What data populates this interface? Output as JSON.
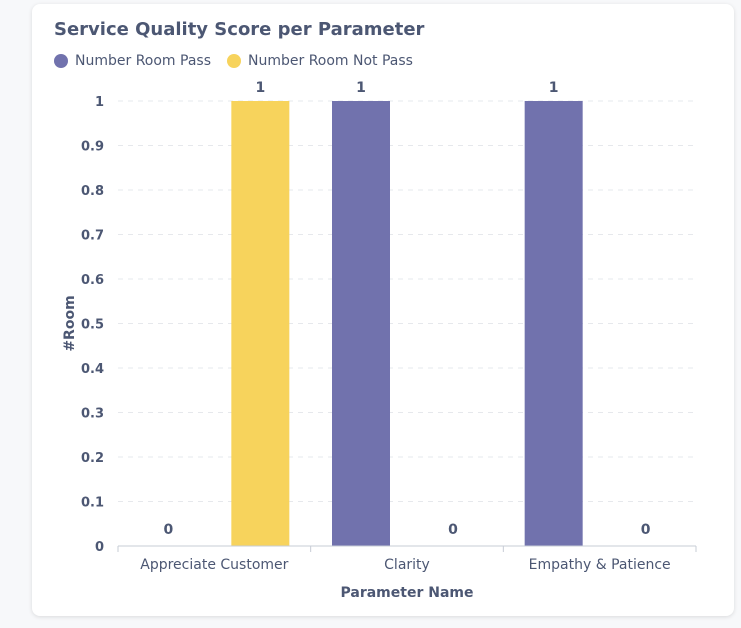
{
  "card": {
    "title": "Service Quality Score per Parameter"
  },
  "legend": [
    {
      "label": "Number Room Pass",
      "color": "#7172ad"
    },
    {
      "label": "Number Room Not Pass",
      "color": "#f7d35c"
    }
  ],
  "chart_data": {
    "type": "bar",
    "title": "Service Quality Score per Parameter",
    "xlabel": "Parameter Name",
    "ylabel": "#Room",
    "categories": [
      "Appreciate Customer",
      "Clarity",
      "Empathy & Patience"
    ],
    "series": [
      {
        "name": "Number Room Pass",
        "color": "#7172ad",
        "values": [
          0,
          1,
          1
        ]
      },
      {
        "name": "Number Room Not Pass",
        "color": "#f7d35c",
        "values": [
          1,
          0,
          0
        ]
      }
    ],
    "ylim": [
      0,
      1
    ],
    "yticks": [
      "0",
      "0.1",
      "0.2",
      "0.3",
      "0.4",
      "0.5",
      "0.6",
      "0.7",
      "0.8",
      "0.9",
      "1"
    ],
    "grid": true,
    "legend_position": "top-left"
  }
}
